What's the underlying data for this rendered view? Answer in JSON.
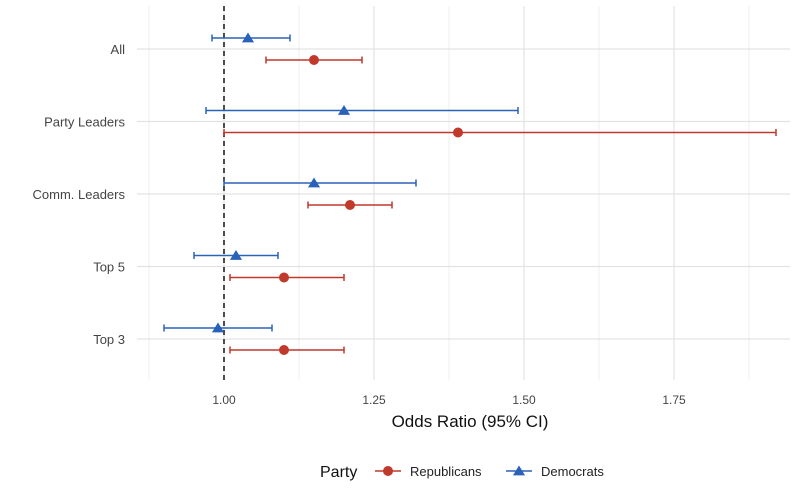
{
  "chart_data": {
    "type": "forest",
    "xlabel": "Odds Ratio (95% CI)",
    "ylabel": "",
    "xlim": [
      0.85,
      1.96
    ],
    "x_ticks": [
      1.0,
      1.25,
      1.5,
      1.75
    ],
    "x_tick_labels": [
      "1.00",
      "1.25",
      "1.50",
      "1.75"
    ],
    "reference_line": 1.0,
    "grid": true,
    "legend": {
      "title": "Party",
      "position": "bottom",
      "entries": [
        "Republicans",
        "Democrats"
      ]
    },
    "categories": [
      "All",
      "Party Leaders",
      "Comm. Leaders",
      "Top 5",
      "Top 3"
    ],
    "series": [
      {
        "name": "Republicans",
        "marker": "circle",
        "color": "#C0392B",
        "estimates": [
          1.15,
          1.39,
          1.21,
          1.1,
          1.1
        ],
        "ci_low": [
          1.07,
          1.0,
          1.14,
          1.01,
          1.01
        ],
        "ci_high": [
          1.23,
          1.92,
          1.28,
          1.2,
          1.2
        ]
      },
      {
        "name": "Democrats",
        "marker": "triangle",
        "color": "#2A62B8",
        "estimates": [
          1.04,
          1.2,
          1.15,
          1.02,
          0.99
        ],
        "ci_low": [
          0.98,
          0.97,
          1.0,
          0.95,
          0.9
        ],
        "ci_high": [
          1.11,
          1.49,
          1.32,
          1.09,
          1.08
        ]
      }
    ]
  }
}
